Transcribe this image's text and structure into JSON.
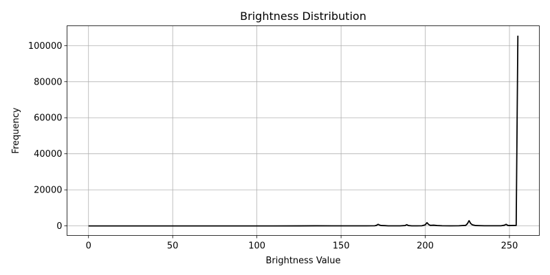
{
  "chart_data": {
    "type": "line",
    "title": "Brightness Distribution",
    "xlabel": "Brightness Value",
    "ylabel": "Frequency",
    "xlim": [
      -12.75,
      267.75
    ],
    "ylim": [
      -5300,
      111000
    ],
    "xticks": [
      0,
      50,
      100,
      150,
      200,
      250
    ],
    "yticks": [
      0,
      20000,
      40000,
      60000,
      80000,
      100000
    ],
    "grid": true,
    "line_color": "#000000",
    "series": [
      {
        "points": [
          [
            0,
            0
          ],
          [
            30,
            0
          ],
          [
            60,
            0
          ],
          [
            90,
            0
          ],
          [
            110,
            0
          ],
          [
            125,
            10
          ],
          [
            135,
            60
          ],
          [
            145,
            40
          ],
          [
            155,
            30
          ],
          [
            165,
            50
          ],
          [
            170,
            100
          ],
          [
            171,
            300
          ],
          [
            172,
            900
          ],
          [
            173,
            400
          ],
          [
            174,
            200
          ],
          [
            176,
            150
          ],
          [
            178,
            50
          ],
          [
            180,
            30
          ],
          [
            185,
            40
          ],
          [
            188,
            200
          ],
          [
            189,
            700
          ],
          [
            190,
            200
          ],
          [
            192,
            50
          ],
          [
            195,
            30
          ],
          [
            198,
            100
          ],
          [
            200,
            600
          ],
          [
            201,
            1800
          ],
          [
            202,
            800
          ],
          [
            203,
            300
          ],
          [
            205,
            400
          ],
          [
            207,
            200
          ],
          [
            210,
            100
          ],
          [
            215,
            50
          ],
          [
            220,
            80
          ],
          [
            224,
            300
          ],
          [
            225,
            1200
          ],
          [
            226,
            2900
          ],
          [
            227,
            1300
          ],
          [
            228,
            600
          ],
          [
            230,
            200
          ],
          [
            235,
            100
          ],
          [
            240,
            80
          ],
          [
            245,
            100
          ],
          [
            247,
            400
          ],
          [
            248,
            900
          ],
          [
            249,
            300
          ],
          [
            250,
            200
          ],
          [
            252,
            250
          ],
          [
            254,
            300
          ],
          [
            255,
            105500
          ]
        ]
      }
    ]
  }
}
